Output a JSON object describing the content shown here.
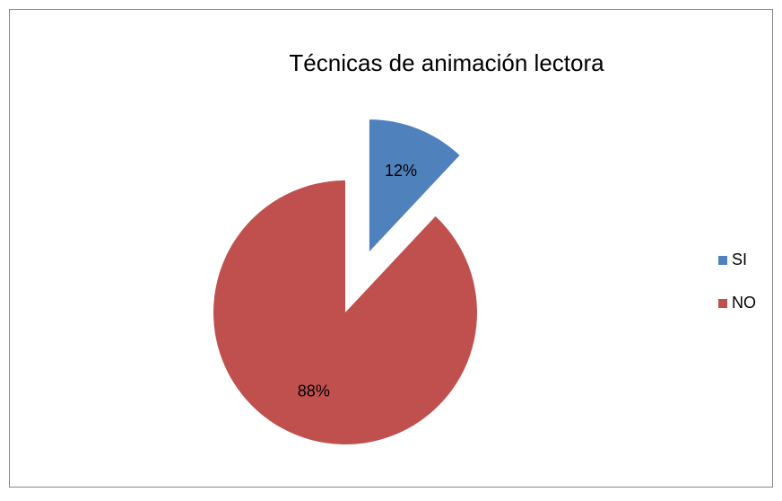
{
  "chart_data": {
    "type": "pie",
    "title": "Técnicas de animación lectora",
    "categories": [
      "SI",
      "NO"
    ],
    "values": [
      12,
      88
    ],
    "value_labels": [
      "12%",
      "88%"
    ],
    "colors": [
      "#4f81bd",
      "#c0504d"
    ],
    "exploded": [
      true,
      false
    ],
    "legend": "right"
  }
}
